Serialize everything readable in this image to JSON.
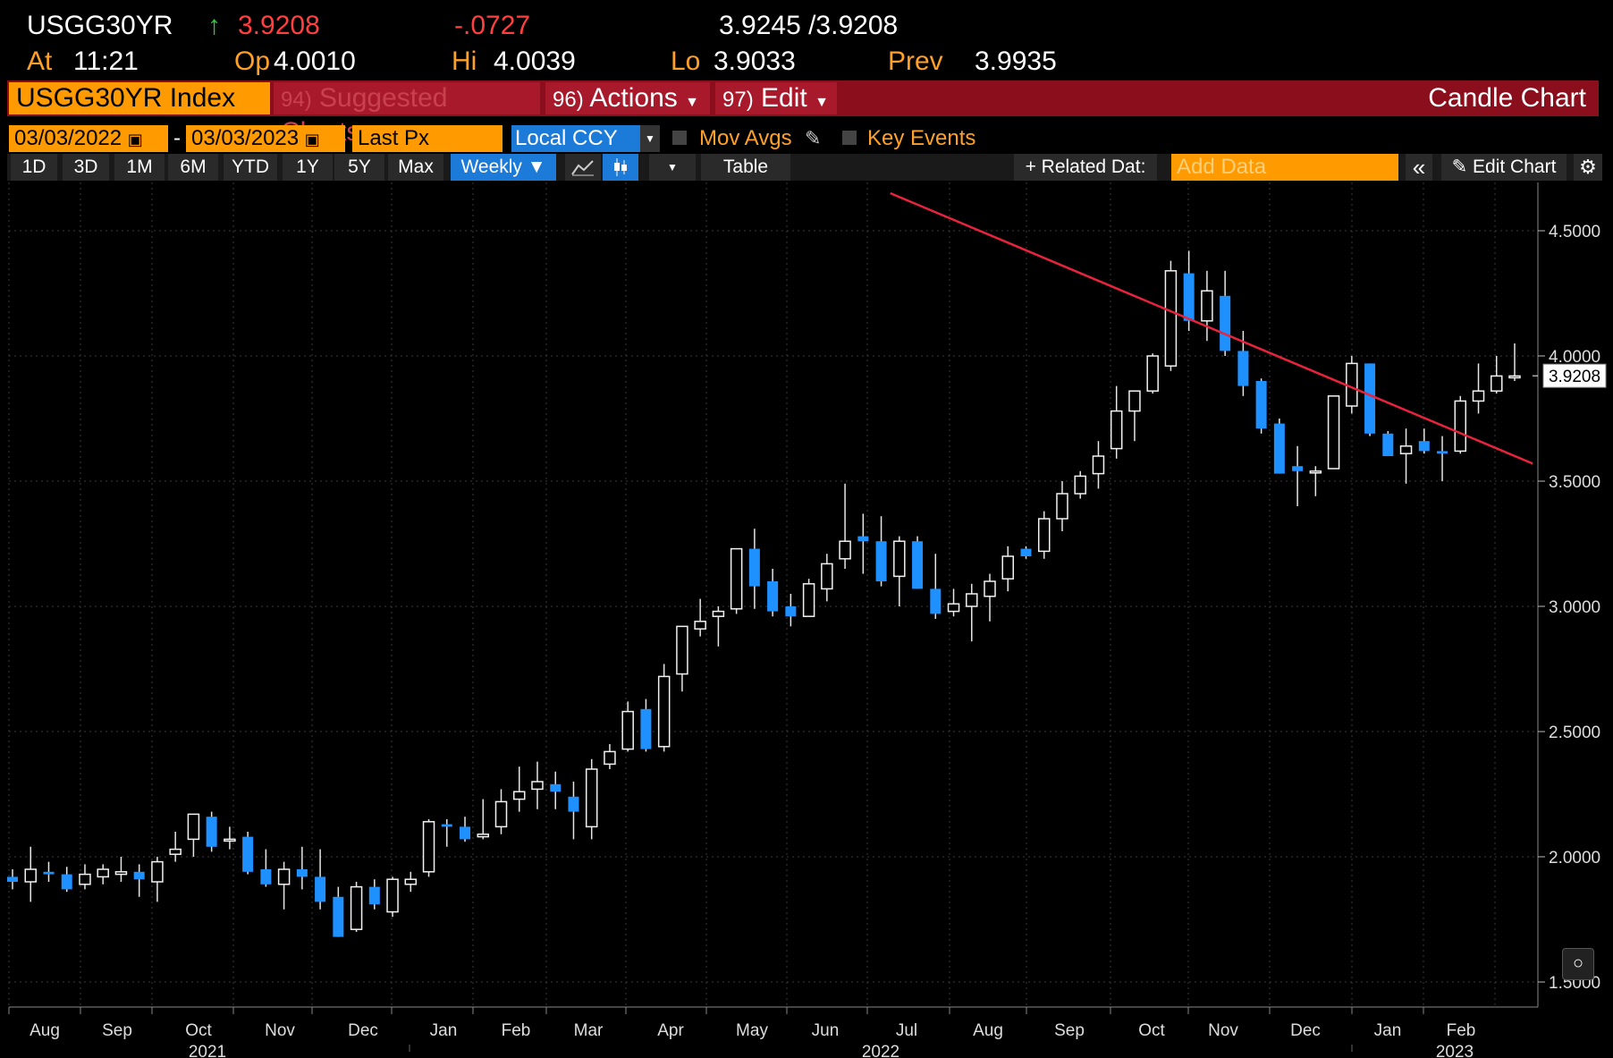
{
  "quote": {
    "ticker": "USGG30YR",
    "arrow": "↑",
    "last": "3.9208",
    "change": "-.0727",
    "bid_ask": "3.9245 /3.9208",
    "at_label": "At",
    "time": "11:21",
    "op_label": "Op",
    "open": "4.0010",
    "hi_label": "Hi",
    "high": "4.0039",
    "lo_label": "Lo",
    "low": "3.9033",
    "prev_label": "Prev",
    "prev": "3.9935"
  },
  "function_bar": {
    "security": "USGG30YR Index",
    "suggested_num": "94)",
    "suggested": "Suggested Charts",
    "actions_num": "96)",
    "actions": "Actions",
    "edit_num": "97)",
    "edit": "Edit",
    "chart_name": "Candle Chart"
  },
  "controls": {
    "start_date": "03/03/2022",
    "dash": "-",
    "end_date": "03/03/2023",
    "field": "Last Px",
    "currency": "Local CCY",
    "mov_avgs": "Mov Avgs",
    "key_events": "Key Events",
    "periods": [
      "1D",
      "3D",
      "1M",
      "6M",
      "YTD",
      "1Y",
      "5Y",
      "Max"
    ],
    "frequency": "Weekly ▼",
    "table": "Table",
    "related_data": "+ Related Dat:",
    "add_data_placeholder": "Add Data",
    "edit_chart": "Edit Chart",
    "collapse": "«"
  },
  "colors": {
    "up_candle": "#ffffff",
    "down_candle": "#1e90ff",
    "trendline": "#e8233e",
    "function_bar": "#8b0e1c",
    "amber": "#ff9a00"
  },
  "chart_data": {
    "type": "candlestick",
    "frequency": "weekly",
    "last_value": "3.9208",
    "y_ticks": [
      "4.5000",
      "4.0000",
      "3.5000",
      "3.0000",
      "2.5000",
      "2.0000",
      "1.5000"
    ],
    "y_tick_values": [
      4.5,
      4.0,
      3.5,
      3.0,
      2.5,
      2.0,
      1.5
    ],
    "ylim": [
      1.5,
      4.6
    ],
    "x_month_labels": [
      "Aug",
      "Sep",
      "Oct",
      "Nov",
      "Dec",
      "Jan",
      "Feb",
      "Mar",
      "Apr",
      "May",
      "Jun",
      "Jul",
      "Aug",
      "Sep",
      "Oct",
      "Nov",
      "Dec",
      "Jan",
      "Feb"
    ],
    "x_year_labels": [
      "2021",
      "2022",
      "2023"
    ],
    "grid": true,
    "trendline": {
      "from": [
        48.5,
        4.65
      ],
      "to": [
        84,
        3.57
      ]
    },
    "candles": [
      [
        1.92,
        1.95,
        1.87,
        1.9
      ],
      [
        1.9,
        2.04,
        1.82,
        1.95
      ],
      [
        1.94,
        1.98,
        1.9,
        1.93
      ],
      [
        1.93,
        1.96,
        1.86,
        1.87
      ],
      [
        1.89,
        1.97,
        1.87,
        1.93
      ],
      [
        1.92,
        1.97,
        1.89,
        1.95
      ],
      [
        1.93,
        2.0,
        1.9,
        1.94
      ],
      [
        1.94,
        1.97,
        1.84,
        1.91
      ],
      [
        1.9,
        2.0,
        1.82,
        1.98
      ],
      [
        2.01,
        2.1,
        1.98,
        2.03
      ],
      [
        2.07,
        2.17,
        2.0,
        2.17
      ],
      [
        2.16,
        2.18,
        2.02,
        2.04
      ],
      [
        2.07,
        2.12,
        2.03,
        2.07
      ],
      [
        2.08,
        2.1,
        1.93,
        1.94
      ],
      [
        1.95,
        2.03,
        1.88,
        1.89
      ],
      [
        1.89,
        1.98,
        1.79,
        1.95
      ],
      [
        1.95,
        2.04,
        1.87,
        1.92
      ],
      [
        1.92,
        2.03,
        1.79,
        1.82
      ],
      [
        1.84,
        1.88,
        1.68,
        1.68
      ],
      [
        1.71,
        1.9,
        1.7,
        1.88
      ],
      [
        1.88,
        1.91,
        1.79,
        1.81
      ],
      [
        1.78,
        1.92,
        1.76,
        1.91
      ],
      [
        1.89,
        1.94,
        1.86,
        1.91
      ],
      [
        1.94,
        2.15,
        1.92,
        2.14
      ],
      [
        2.13,
        2.15,
        2.04,
        2.12
      ],
      [
        2.12,
        2.16,
        2.06,
        2.07
      ],
      [
        2.08,
        2.23,
        2.07,
        2.09
      ],
      [
        2.12,
        2.27,
        2.09,
        2.22
      ],
      [
        2.23,
        2.36,
        2.18,
        2.26
      ],
      [
        2.27,
        2.38,
        2.19,
        2.3
      ],
      [
        2.29,
        2.34,
        2.19,
        2.26
      ],
      [
        2.24,
        2.3,
        2.07,
        2.18
      ],
      [
        2.12,
        2.39,
        2.07,
        2.35
      ],
      [
        2.37,
        2.45,
        2.35,
        2.42
      ],
      [
        2.43,
        2.62,
        2.42,
        2.58
      ],
      [
        2.59,
        2.63,
        2.42,
        2.43
      ],
      [
        2.44,
        2.77,
        2.42,
        2.72
      ],
      [
        2.73,
        2.91,
        2.66,
        2.92
      ],
      [
        2.91,
        3.03,
        2.88,
        2.94
      ],
      [
        2.96,
        3.0,
        2.84,
        2.98
      ],
      [
        2.99,
        3.23,
        2.97,
        3.23
      ],
      [
        3.23,
        3.31,
        2.99,
        3.08
      ],
      [
        3.1,
        3.15,
        2.96,
        2.98
      ],
      [
        3.0,
        3.05,
        2.92,
        2.96
      ],
      [
        2.96,
        3.11,
        2.96,
        3.09
      ],
      [
        3.07,
        3.21,
        3.02,
        3.17
      ],
      [
        3.19,
        3.49,
        3.15,
        3.26
      ],
      [
        3.28,
        3.37,
        3.13,
        3.26
      ],
      [
        3.26,
        3.36,
        3.08,
        3.1
      ],
      [
        3.12,
        3.28,
        3.0,
        3.26
      ],
      [
        3.26,
        3.28,
        3.07,
        3.07
      ],
      [
        3.07,
        3.21,
        2.95,
        2.97
      ],
      [
        2.98,
        3.07,
        2.96,
        3.01
      ],
      [
        3.0,
        3.09,
        2.86,
        3.05
      ],
      [
        3.04,
        3.13,
        2.94,
        3.1
      ],
      [
        3.11,
        3.24,
        3.06,
        3.2
      ],
      [
        3.23,
        3.24,
        3.19,
        3.2
      ],
      [
        3.22,
        3.38,
        3.19,
        3.35
      ],
      [
        3.35,
        3.5,
        3.3,
        3.45
      ],
      [
        3.45,
        3.54,
        3.43,
        3.52
      ],
      [
        3.53,
        3.66,
        3.47,
        3.6
      ],
      [
        3.63,
        3.88,
        3.59,
        3.78
      ],
      [
        3.78,
        3.86,
        3.66,
        3.86
      ],
      [
        3.86,
        4.01,
        3.85,
        4.0
      ],
      [
        3.96,
        4.38,
        3.94,
        4.34
      ],
      [
        4.33,
        4.42,
        4.1,
        4.14
      ],
      [
        4.14,
        4.34,
        4.06,
        4.26
      ],
      [
        4.24,
        4.34,
        4.0,
        4.02
      ],
      [
        4.02,
        4.1,
        3.84,
        3.88
      ],
      [
        3.9,
        3.91,
        3.69,
        3.71
      ],
      [
        3.73,
        3.75,
        3.53,
        3.53
      ],
      [
        3.56,
        3.64,
        3.4,
        3.54
      ],
      [
        3.54,
        3.56,
        3.44,
        3.54
      ],
      [
        3.55,
        3.84,
        3.55,
        3.84
      ],
      [
        3.8,
        4.0,
        3.77,
        3.97
      ],
      [
        3.97,
        3.97,
        3.68,
        3.69
      ],
      [
        3.69,
        3.7,
        3.6,
        3.6
      ],
      [
        3.61,
        3.71,
        3.49,
        3.64
      ],
      [
        3.66,
        3.71,
        3.61,
        3.62
      ],
      [
        3.62,
        3.68,
        3.5,
        3.61
      ],
      [
        3.62,
        3.84,
        3.61,
        3.82
      ],
      [
        3.82,
        3.97,
        3.77,
        3.86
      ],
      [
        3.86,
        4.0,
        3.85,
        3.92
      ],
      [
        3.92,
        4.05,
        3.9,
        3.92
      ]
    ]
  }
}
